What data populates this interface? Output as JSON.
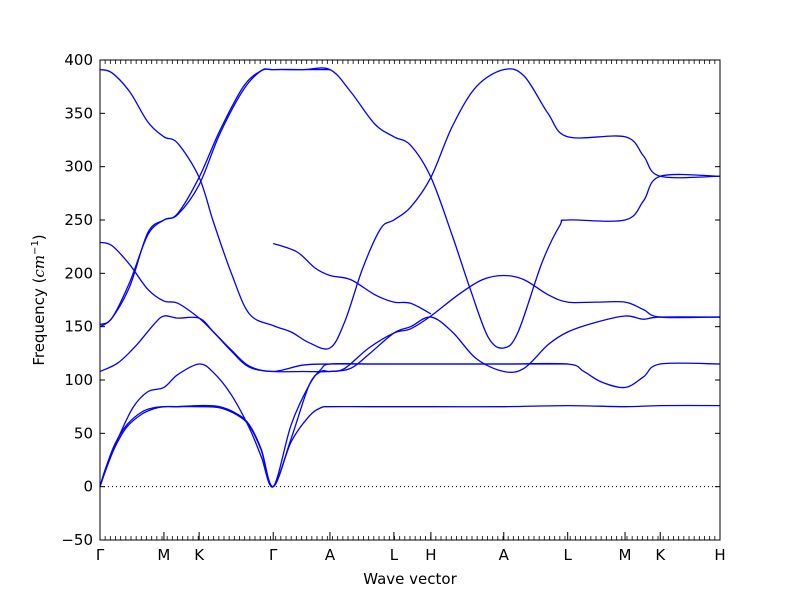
{
  "chart_data": {
    "type": "line",
    "title": "",
    "xlabel": "Wave vector",
    "ylabel": {
      "prefix": "Frequency (",
      "unit_base": "cm",
      "unit_exp": "−1",
      "suffix": ")"
    },
    "ylim": [
      -50,
      400
    ],
    "yticks": [
      -50,
      0,
      50,
      100,
      150,
      200,
      250,
      300,
      350,
      400
    ],
    "xlim": [
      0,
      10.38
    ],
    "grid": false,
    "legend": "none",
    "zero_line": {
      "y": 0,
      "style": "dotted",
      "color": "#000000"
    },
    "line_color": "#0000ff",
    "high_symmetry_points": [
      {
        "label": "Γ",
        "x": 0.0
      },
      {
        "label": "M",
        "x": 1.07
      },
      {
        "label": "K",
        "x": 1.66
      },
      {
        "label": "Γ",
        "x": 2.9
      },
      {
        "label": "A",
        "x": 3.85
      },
      {
        "label": "L",
        "x": 4.92
      },
      {
        "label": "H",
        "x": 5.54
      },
      {
        "label": "A",
        "x": 6.76
      },
      {
        "label": "L",
        "x": 7.83
      },
      {
        "label": "M",
        "x": 8.79
      },
      {
        "label": "K",
        "x": 9.38
      },
      {
        "label": "H",
        "x": 10.38
      }
    ],
    "series": [
      {
        "values": [
          [
            0,
            0
          ],
          [
            0.1,
            18
          ],
          [
            0.25,
            40
          ],
          [
            0.45,
            58
          ],
          [
            0.7,
            70
          ],
          [
            0.9,
            74
          ],
          [
            1.07,
            75
          ],
          [
            1.3,
            75
          ],
          [
            1.66,
            76
          ],
          [
            2.0,
            75
          ],
          [
            2.3,
            68
          ],
          [
            2.5,
            58
          ],
          [
            2.7,
            35
          ],
          [
            2.9,
            0
          ],
          [
            3.2,
            42
          ],
          [
            3.5,
            66
          ],
          [
            3.7,
            74
          ],
          [
            3.85,
            75
          ],
          [
            4.5,
            75
          ],
          [
            5.54,
            75
          ],
          [
            6.76,
            75
          ],
          [
            7.83,
            76
          ],
          [
            8.79,
            75
          ],
          [
            9.38,
            76
          ],
          [
            10.38,
            76
          ]
        ]
      },
      {
        "values": [
          [
            0,
            0
          ],
          [
            0.1,
            16
          ],
          [
            0.25,
            37
          ],
          [
            0.45,
            56
          ],
          [
            0.7,
            68
          ],
          [
            0.9,
            73
          ],
          [
            1.07,
            75
          ],
          [
            1.3,
            75
          ],
          [
            1.66,
            75
          ],
          [
            2.0,
            74
          ],
          [
            2.3,
            67
          ],
          [
            2.5,
            57
          ],
          [
            2.7,
            34
          ],
          [
            2.9,
            0
          ],
          [
            3.2,
            58
          ],
          [
            3.5,
            95
          ],
          [
            3.7,
            110
          ],
          [
            3.85,
            115
          ],
          [
            4.5,
            115
          ],
          [
            5.54,
            115
          ],
          [
            6.76,
            115
          ],
          [
            7.83,
            115
          ],
          [
            8.1,
            108
          ],
          [
            8.4,
            98
          ],
          [
            8.79,
            93
          ],
          [
            9.1,
            103
          ],
          [
            9.38,
            115
          ],
          [
            10.38,
            115
          ]
        ]
      },
      {
        "values": [
          [
            0,
            0
          ],
          [
            0.1,
            18
          ],
          [
            0.3,
            45
          ],
          [
            0.55,
            74
          ],
          [
            0.8,
            89
          ],
          [
            1.07,
            93
          ],
          [
            1.3,
            105
          ],
          [
            1.66,
            115
          ],
          [
            1.9,
            107
          ],
          [
            2.2,
            86
          ],
          [
            2.5,
            55
          ],
          [
            2.7,
            28
          ],
          [
            2.9,
            0
          ],
          [
            3.2,
            45
          ],
          [
            3.5,
            95
          ],
          [
            3.7,
            108
          ],
          [
            3.85,
            108
          ],
          [
            4.1,
            111
          ],
          [
            4.5,
            130
          ],
          [
            4.92,
            144
          ],
          [
            5.2,
            148
          ],
          [
            5.54,
            160
          ],
          [
            6.0,
            180
          ],
          [
            6.4,
            194
          ],
          [
            6.76,
            198
          ],
          [
            7.1,
            194
          ],
          [
            7.5,
            180
          ],
          [
            7.83,
            173
          ],
          [
            8.3,
            173
          ],
          [
            8.79,
            173
          ],
          [
            9.1,
            166
          ],
          [
            9.38,
            159
          ],
          [
            10.38,
            159
          ]
        ]
      },
      {
        "values": [
          [
            0,
            108
          ],
          [
            0.3,
            116
          ],
          [
            0.6,
            132
          ],
          [
            0.9,
            152
          ],
          [
            1.07,
            160
          ],
          [
            1.3,
            158
          ],
          [
            1.66,
            158
          ],
          [
            1.9,
            145
          ],
          [
            2.2,
            127
          ],
          [
            2.5,
            112
          ],
          [
            2.9,
            108
          ],
          [
            3.4,
            108
          ],
          [
            3.85,
            108
          ],
          [
            4.2,
            111
          ],
          [
            4.5,
            124
          ],
          [
            4.92,
            144
          ],
          [
            5.2,
            150
          ],
          [
            5.54,
            159
          ],
          [
            5.9,
            145
          ],
          [
            6.3,
            120
          ],
          [
            6.76,
            108
          ],
          [
            7.1,
            111
          ],
          [
            7.5,
            133
          ],
          [
            7.83,
            145
          ],
          [
            8.3,
            154
          ],
          [
            8.79,
            160
          ],
          [
            9.1,
            157
          ],
          [
            9.38,
            159
          ],
          [
            10.38,
            159
          ]
        ]
      },
      {
        "values": [
          [
            0,
            229
          ],
          [
            0.2,
            226
          ],
          [
            0.5,
            208
          ],
          [
            0.8,
            185
          ],
          [
            1.07,
            174
          ],
          [
            1.3,
            172
          ],
          [
            1.66,
            158
          ],
          [
            1.9,
            145
          ],
          [
            2.2,
            128
          ],
          [
            2.5,
            113
          ],
          [
            2.9,
            108
          ],
          [
            3.4,
            114
          ],
          [
            3.85,
            115
          ],
          [
            4.5,
            115
          ],
          [
            5.54,
            115
          ],
          [
            6.76,
            115
          ],
          [
            7.83,
            115
          ]
        ]
      },
      {
        "values": [
          [
            0,
            152
          ],
          [
            0.2,
            158
          ],
          [
            0.5,
            192
          ],
          [
            0.8,
            236
          ],
          [
            1.07,
            250
          ],
          [
            1.3,
            255
          ],
          [
            1.66,
            283
          ],
          [
            2.0,
            330
          ],
          [
            2.4,
            372
          ],
          [
            2.7,
            390
          ],
          [
            2.9,
            391
          ],
          [
            3.4,
            391
          ],
          [
            3.85,
            391
          ],
          [
            4.2,
            370
          ],
          [
            4.6,
            340
          ],
          [
            4.92,
            328
          ],
          [
            5.2,
            320
          ],
          [
            5.54,
            290
          ],
          [
            5.9,
            235
          ],
          [
            6.2,
            185
          ],
          [
            6.5,
            140
          ],
          [
            6.76,
            130
          ],
          [
            7.0,
            145
          ],
          [
            7.4,
            210
          ],
          [
            7.7,
            245
          ],
          [
            7.83,
            250
          ],
          [
            8.79,
            250
          ],
          [
            9.1,
            268
          ],
          [
            9.38,
            291
          ],
          [
            10.38,
            291
          ]
        ]
      },
      {
        "values": [
          [
            0,
            391
          ],
          [
            0.2,
            388
          ],
          [
            0.5,
            370
          ],
          [
            0.8,
            342
          ],
          [
            1.07,
            328
          ],
          [
            1.3,
            322
          ],
          [
            1.66,
            290
          ],
          [
            1.9,
            248
          ],
          [
            2.2,
            200
          ],
          [
            2.5,
            162
          ],
          [
            2.9,
            151
          ],
          [
            3.2,
            145
          ],
          [
            3.5,
            135
          ],
          [
            3.85,
            130
          ],
          [
            4.1,
            155
          ],
          [
            4.4,
            205
          ],
          [
            4.7,
            242
          ],
          [
            4.92,
            250
          ],
          [
            5.2,
            262
          ],
          [
            5.54,
            290
          ],
          [
            5.9,
            338
          ],
          [
            6.3,
            375
          ],
          [
            6.76,
            391
          ],
          [
            7.1,
            385
          ],
          [
            7.5,
            350
          ],
          [
            7.83,
            328
          ],
          [
            8.79,
            328
          ],
          [
            9.1,
            310
          ],
          [
            9.38,
            291
          ],
          [
            10.38,
            291
          ]
        ]
      },
      {
        "values": [
          [
            0,
            150
          ],
          [
            0.2,
            158
          ],
          [
            0.5,
            188
          ],
          [
            0.8,
            238
          ],
          [
            1.07,
            250
          ],
          [
            1.3,
            256
          ],
          [
            1.66,
            290
          ],
          [
            2.0,
            333
          ],
          [
            2.4,
            375
          ],
          [
            2.7,
            390
          ],
          [
            2.9,
            391
          ],
          [
            3.3,
            391
          ],
          [
            3.85,
            391
          ]
        ]
      },
      {
        "values": [
          [
            2.9,
            228
          ],
          [
            3.3,
            220
          ],
          [
            3.6,
            205
          ],
          [
            3.85,
            198
          ],
          [
            4.2,
            194
          ],
          [
            4.6,
            180
          ],
          [
            4.92,
            173
          ],
          [
            5.2,
            172
          ],
          [
            5.54,
            162
          ]
        ]
      }
    ]
  }
}
